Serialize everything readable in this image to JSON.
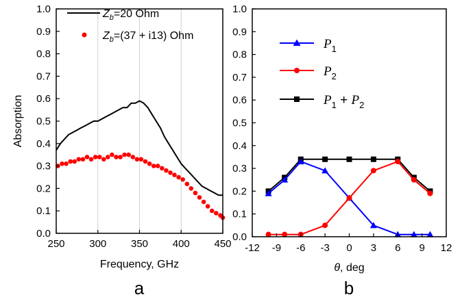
{
  "chart_data": [
    {
      "panel": "a",
      "type": "line",
      "xlabel": "Frequency, GHz",
      "ylabel": "Absorption",
      "xlim": [
        250,
        450
      ],
      "ylim": [
        0.0,
        1.0
      ],
      "x_ticks": [
        "250",
        "300",
        "350",
        "400",
        "450"
      ],
      "y_ticks": [
        "0.0",
        "0.1",
        "0.2",
        "0.3",
        "0.4",
        "0.5",
        "0.6",
        "0.7",
        "0.8",
        "0.9",
        "1.0"
      ],
      "grid": "x",
      "legend_position": "top-right",
      "series": [
        {
          "name": "Z_b=20 Ohm",
          "style": "line",
          "color": "#000000",
          "x": [
            250,
            255,
            260,
            265,
            270,
            275,
            280,
            285,
            290,
            295,
            300,
            305,
            310,
            315,
            320,
            325,
            330,
            335,
            340,
            345,
            350,
            355,
            360,
            365,
            370,
            375,
            380,
            385,
            390,
            395,
            400,
            405,
            410,
            415,
            420,
            425,
            430,
            435,
            440,
            445,
            450
          ],
          "y": [
            0.37,
            0.4,
            0.42,
            0.44,
            0.45,
            0.46,
            0.47,
            0.48,
            0.49,
            0.5,
            0.5,
            0.51,
            0.52,
            0.53,
            0.54,
            0.55,
            0.56,
            0.56,
            0.58,
            0.58,
            0.59,
            0.58,
            0.56,
            0.53,
            0.5,
            0.47,
            0.43,
            0.4,
            0.37,
            0.34,
            0.31,
            0.29,
            0.27,
            0.25,
            0.23,
            0.21,
            0.2,
            0.19,
            0.18,
            0.17,
            0.17
          ]
        },
        {
          "name": "Z_b=(37 + i13) Ohm",
          "style": "scatter",
          "color": "#ff0000",
          "x": [
            252,
            257,
            262,
            267,
            272,
            277,
            282,
            287,
            292,
            297,
            302,
            307,
            312,
            317,
            322,
            327,
            332,
            337,
            342,
            347,
            352,
            357,
            362,
            367,
            372,
            377,
            382,
            387,
            392,
            397,
            402,
            407,
            412,
            417,
            422,
            427,
            432,
            437,
            442,
            447,
            450
          ],
          "y": [
            0.3,
            0.31,
            0.31,
            0.32,
            0.32,
            0.33,
            0.33,
            0.34,
            0.33,
            0.34,
            0.34,
            0.33,
            0.34,
            0.35,
            0.34,
            0.34,
            0.35,
            0.35,
            0.34,
            0.33,
            0.33,
            0.32,
            0.31,
            0.3,
            0.3,
            0.29,
            0.28,
            0.27,
            0.26,
            0.25,
            0.24,
            0.22,
            0.2,
            0.18,
            0.16,
            0.14,
            0.12,
            0.1,
            0.09,
            0.08,
            0.07
          ]
        }
      ]
    },
    {
      "panel": "b",
      "type": "line",
      "xlabel": "θ, deg",
      "ylabel": "",
      "xlim": [
        -12,
        12
      ],
      "ylim": [
        0.0,
        1.0
      ],
      "x_ticks": [
        "-12",
        "-9",
        "-6",
        "-3",
        "0",
        "3",
        "6",
        "9",
        "12"
      ],
      "y_ticks": [
        "0.0",
        "0.1",
        "0.2",
        "0.3",
        "0.4",
        "0.5",
        "0.6",
        "0.7",
        "0.8",
        "0.9",
        "1.0"
      ],
      "grid": "none",
      "legend_position": "top-left",
      "series": [
        {
          "name": "P_1",
          "marker": "triangle",
          "color": "#0000ff",
          "x": [
            -10,
            -8,
            -6,
            -3,
            0,
            3,
            6,
            8,
            10
          ],
          "y": [
            0.19,
            0.25,
            0.33,
            0.29,
            0.17,
            0.05,
            0.01,
            0.01,
            0.01
          ]
        },
        {
          "name": "P_2",
          "marker": "circle",
          "color": "#ff0000",
          "x": [
            -10,
            -8,
            -6,
            -3,
            0,
            3,
            6,
            8,
            10
          ],
          "y": [
            0.01,
            0.01,
            0.01,
            0.05,
            0.17,
            0.29,
            0.33,
            0.25,
            0.19
          ]
        },
        {
          "name": "P_1 + P_2",
          "marker": "square",
          "color": "#000000",
          "x": [
            -10,
            -8,
            -6,
            -3,
            0,
            3,
            6,
            8,
            10
          ],
          "y": [
            0.2,
            0.26,
            0.34,
            0.34,
            0.34,
            0.34,
            0.34,
            0.26,
            0.2
          ]
        }
      ]
    }
  ],
  "legend_a": {
    "s1_main": "Z",
    "s1_sub": "b",
    "s1_rest": "=20 Ohm",
    "s2_main": "Z",
    "s2_sub": "b",
    "s2_rest": "=(37 + i13) Ohm"
  },
  "legend_b": {
    "s1_main": "P",
    "s1_sub": "1",
    "s2_main": "P",
    "s2_sub": "2",
    "s3_main1": "P",
    "s3_sub1": "1",
    "s3_mid": " + ",
    "s3_main2": "P",
    "s3_sub2": "2"
  },
  "panel_labels": {
    "a": "a",
    "b": "b"
  },
  "xtitle_b": {
    "theta": "θ",
    "rest": ", deg"
  }
}
